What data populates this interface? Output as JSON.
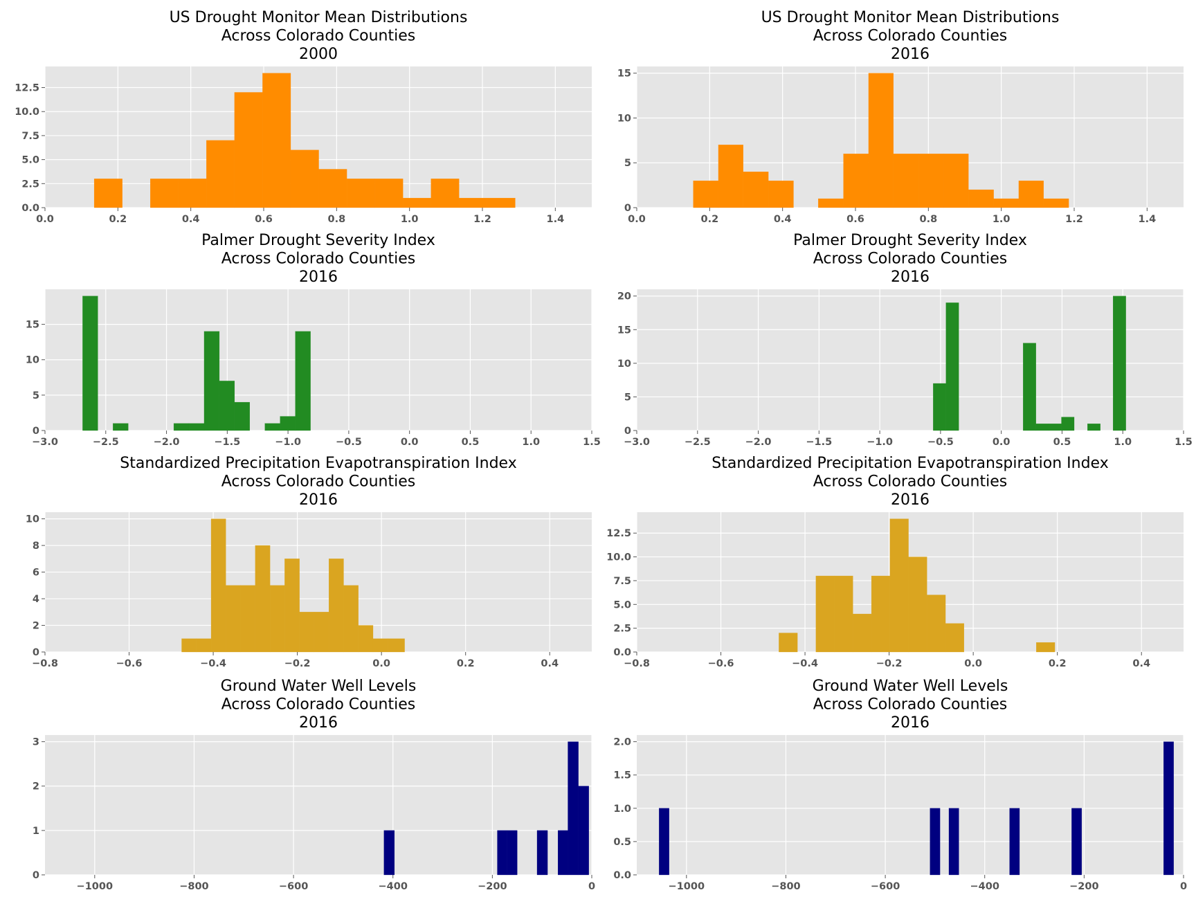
{
  "chart_data": [
    {
      "type": "bar",
      "title": [
        "US Drought Monitor Mean Distributions",
        "Across Colorado Counties",
        "2000"
      ],
      "color": "#ff8c00",
      "xlim": [
        0.0,
        1.5
      ],
      "ylim": [
        0,
        14.7
      ],
      "xticks": [
        0.0,
        0.2,
        0.4,
        0.6,
        0.8,
        1.0,
        1.2,
        1.4
      ],
      "xtick_labels": [
        "0.0",
        "0.2",
        "0.4",
        "0.6",
        "0.8",
        "1.0",
        "1.2",
        "1.4"
      ],
      "yticks": [
        0,
        2.5,
        5.0,
        7.5,
        10.0,
        12.5
      ],
      "ytick_labels": [
        "0.0",
        "2.5",
        "5.0",
        "7.5",
        "10.0",
        "12.5"
      ],
      "bins": [
        {
          "x0": 0.135,
          "x1": 0.212,
          "count": 3
        },
        {
          "x0": 0.289,
          "x1": 0.366,
          "count": 3
        },
        {
          "x0": 0.366,
          "x1": 0.443,
          "count": 3
        },
        {
          "x0": 0.443,
          "x1": 0.52,
          "count": 7
        },
        {
          "x0": 0.52,
          "x1": 0.597,
          "count": 12
        },
        {
          "x0": 0.597,
          "x1": 0.674,
          "count": 14
        },
        {
          "x0": 0.674,
          "x1": 0.751,
          "count": 6
        },
        {
          "x0": 0.751,
          "x1": 0.828,
          "count": 4
        },
        {
          "x0": 0.828,
          "x1": 0.905,
          "count": 3
        },
        {
          "x0": 0.905,
          "x1": 0.982,
          "count": 3
        },
        {
          "x0": 0.982,
          "x1": 1.059,
          "count": 1
        },
        {
          "x0": 1.059,
          "x1": 1.136,
          "count": 3
        },
        {
          "x0": 1.136,
          "x1": 1.213,
          "count": 1
        },
        {
          "x0": 1.213,
          "x1": 1.29,
          "count": 1
        }
      ]
    },
    {
      "type": "bar",
      "title": [
        "US Drought Monitor Mean Distributions",
        "Across Colorado Counties",
        "2016"
      ],
      "color": "#ff8c00",
      "xlim": [
        0.0,
        1.5
      ],
      "ylim": [
        0,
        15.75
      ],
      "xticks": [
        0.0,
        0.2,
        0.4,
        0.6,
        0.8,
        1.0,
        1.2,
        1.4
      ],
      "xtick_labels": [
        "0.0",
        "0.2",
        "0.4",
        "0.6",
        "0.8",
        "1.0",
        "1.2",
        "1.4"
      ],
      "yticks": [
        0,
        5,
        10,
        15
      ],
      "ytick_labels": [
        "0",
        "5",
        "10",
        "15"
      ],
      "bins": [
        {
          "x0": 0.155,
          "x1": 0.224,
          "count": 3
        },
        {
          "x0": 0.224,
          "x1": 0.292,
          "count": 7
        },
        {
          "x0": 0.292,
          "x1": 0.361,
          "count": 4
        },
        {
          "x0": 0.361,
          "x1": 0.43,
          "count": 3
        },
        {
          "x0": 0.498,
          "x1": 0.567,
          "count": 1
        },
        {
          "x0": 0.567,
          "x1": 0.636,
          "count": 6
        },
        {
          "x0": 0.636,
          "x1": 0.704,
          "count": 15
        },
        {
          "x0": 0.704,
          "x1": 0.773,
          "count": 6
        },
        {
          "x0": 0.773,
          "x1": 0.842,
          "count": 6
        },
        {
          "x0": 0.842,
          "x1": 0.91,
          "count": 6
        },
        {
          "x0": 0.91,
          "x1": 0.979,
          "count": 2
        },
        {
          "x0": 0.979,
          "x1": 1.048,
          "count": 1
        },
        {
          "x0": 1.048,
          "x1": 1.116,
          "count": 3
        },
        {
          "x0": 1.116,
          "x1": 1.185,
          "count": 1
        }
      ]
    },
    {
      "type": "bar",
      "title": [
        "Palmer Drought Severity Index",
        "Across Colorado Counties",
        "2016"
      ],
      "color": "#228b22",
      "xlim": [
        -3.0,
        1.5
      ],
      "ylim": [
        0,
        19.95
      ],
      "xticks": [
        -3.0,
        -2.5,
        -2.0,
        -1.5,
        -1.0,
        -0.5,
        0.0,
        0.5,
        1.0,
        1.5
      ],
      "xtick_labels": [
        "−3.0",
        "−2.5",
        "−2.0",
        "−1.5",
        "−1.0",
        "−0.5",
        "0.0",
        "0.5",
        "1.0",
        "1.5"
      ],
      "yticks": [
        0,
        5,
        10,
        15
      ],
      "ytick_labels": [
        "0",
        "5",
        "10",
        "15"
      ],
      "bins": [
        {
          "x0": -2.69,
          "x1": -2.565,
          "count": 19
        },
        {
          "x0": -2.44,
          "x1": -2.315,
          "count": 1
        },
        {
          "x0": -1.94,
          "x1": -1.815,
          "count": 1
        },
        {
          "x0": -1.815,
          "x1": -1.69,
          "count": 1
        },
        {
          "x0": -1.69,
          "x1": -1.565,
          "count": 14
        },
        {
          "x0": -1.565,
          "x1": -1.44,
          "count": 7
        },
        {
          "x0": -1.44,
          "x1": -1.315,
          "count": 4
        },
        {
          "x0": -1.19,
          "x1": -1.065,
          "count": 1
        },
        {
          "x0": -1.065,
          "x1": -0.94,
          "count": 2
        },
        {
          "x0": -0.94,
          "x1": -0.815,
          "count": 14
        }
      ]
    },
    {
      "type": "bar",
      "title": [
        "Palmer Drought Severity Index",
        "Across Colorado Counties",
        "2016"
      ],
      "color": "#228b22",
      "xlim": [
        -3.0,
        1.5
      ],
      "ylim": [
        0,
        21.0
      ],
      "xticks": [
        -3.0,
        -2.5,
        -2.0,
        -1.5,
        -1.0,
        -0.5,
        0.0,
        0.5,
        1.0,
        1.5
      ],
      "xtick_labels": [
        "−3.0",
        "−2.5",
        "−2.0",
        "−1.5",
        "−1.0",
        "−0.5",
        "0.0",
        "0.5",
        "1.0",
        "1.5"
      ],
      "yticks": [
        0,
        5,
        10,
        15,
        20
      ],
      "ytick_labels": [
        "0",
        "5",
        "10",
        "15",
        "20"
      ],
      "bins": [
        {
          "x0": -0.56,
          "x1": -0.455,
          "count": 7
        },
        {
          "x0": -0.455,
          "x1": -0.35,
          "count": 19
        },
        {
          "x0": 0.18,
          "x1": 0.285,
          "count": 13
        },
        {
          "x0": 0.285,
          "x1": 0.39,
          "count": 1
        },
        {
          "x0": 0.39,
          "x1": 0.495,
          "count": 1
        },
        {
          "x0": 0.495,
          "x1": 0.6,
          "count": 2
        },
        {
          "x0": 0.71,
          "x1": 0.815,
          "count": 1
        },
        {
          "x0": 0.92,
          "x1": 1.025,
          "count": 20
        }
      ]
    },
    {
      "type": "bar",
      "title": [
        "Standardized Precipitation Evapotranspiration Index",
        "Across Colorado Counties",
        "2016"
      ],
      "color": "#daa520",
      "xlim": [
        -0.8,
        0.5
      ],
      "ylim": [
        0,
        10.5
      ],
      "xticks": [
        -0.8,
        -0.6,
        -0.4,
        -0.2,
        0.0,
        0.2,
        0.4
      ],
      "xtick_labels": [
        "−0.8",
        "−0.6",
        "−0.4",
        "−0.2",
        "0.0",
        "0.2",
        "0.4"
      ],
      "yticks": [
        0,
        2,
        4,
        6,
        8,
        10
      ],
      "ytick_labels": [
        "0",
        "2",
        "4",
        "6",
        "8",
        "10"
      ],
      "bins": [
        {
          "x0": -0.475,
          "x1": -0.44,
          "count": 1
        },
        {
          "x0": -0.44,
          "x1": -0.405,
          "count": 1
        },
        {
          "x0": -0.405,
          "x1": -0.37,
          "count": 10
        },
        {
          "x0": -0.37,
          "x1": -0.335,
          "count": 5
        },
        {
          "x0": -0.335,
          "x1": -0.3,
          "count": 5
        },
        {
          "x0": -0.3,
          "x1": -0.265,
          "count": 8
        },
        {
          "x0": -0.265,
          "x1": -0.23,
          "count": 5
        },
        {
          "x0": -0.23,
          "x1": -0.195,
          "count": 7
        },
        {
          "x0": -0.195,
          "x1": -0.16,
          "count": 3
        },
        {
          "x0": -0.16,
          "x1": -0.125,
          "count": 3
        },
        {
          "x0": -0.125,
          "x1": -0.09,
          "count": 7
        },
        {
          "x0": -0.09,
          "x1": -0.055,
          "count": 5
        },
        {
          "x0": -0.055,
          "x1": -0.02,
          "count": 2
        },
        {
          "x0": -0.02,
          "x1": 0.015,
          "count": 1
        },
        {
          "x0": 0.015,
          "x1": 0.055,
          "count": 1
        }
      ]
    },
    {
      "type": "bar",
      "title": [
        "Standardized Precipitation Evapotranspiration Index",
        "Across Colorado Counties",
        "2016"
      ],
      "color": "#daa520",
      "xlim": [
        -0.8,
        0.5
      ],
      "ylim": [
        0,
        14.7
      ],
      "xticks": [
        -0.8,
        -0.6,
        -0.4,
        -0.2,
        0.0,
        0.2,
        0.4
      ],
      "xtick_labels": [
        "−0.8",
        "−0.6",
        "−0.4",
        "−0.2",
        "0.0",
        "0.2",
        "0.4"
      ],
      "yticks": [
        0,
        2.5,
        5.0,
        7.5,
        10.0,
        12.5
      ],
      "ytick_labels": [
        "0.0",
        "2.5",
        "5.0",
        "7.5",
        "10.0",
        "12.5"
      ],
      "bins": [
        {
          "x0": -0.462,
          "x1": -0.418,
          "count": 2
        },
        {
          "x0": -0.374,
          "x1": -0.33,
          "count": 8
        },
        {
          "x0": -0.33,
          "x1": -0.286,
          "count": 8
        },
        {
          "x0": -0.286,
          "x1": -0.242,
          "count": 4
        },
        {
          "x0": -0.242,
          "x1": -0.198,
          "count": 8
        },
        {
          "x0": -0.198,
          "x1": -0.154,
          "count": 14
        },
        {
          "x0": -0.154,
          "x1": -0.11,
          "count": 10
        },
        {
          "x0": -0.11,
          "x1": -0.066,
          "count": 6
        },
        {
          "x0": -0.066,
          "x1": -0.022,
          "count": 3
        },
        {
          "x0": 0.15,
          "x1": 0.194,
          "count": 1
        }
      ]
    },
    {
      "type": "bar",
      "title": [
        "Ground Water Well Levels",
        "Across Colorado Counties",
        "2016"
      ],
      "color": "#000080",
      "xlim": [
        -1100,
        0
      ],
      "ylim": [
        0,
        3.15
      ],
      "xticks": [
        -1000,
        -800,
        -600,
        -400,
        -200,
        0
      ],
      "xtick_labels": [
        "−1000",
        "−800",
        "−600",
        "−400",
        "−200",
        "0"
      ],
      "yticks": [
        0,
        1,
        2,
        3
      ],
      "ytick_labels": [
        "0",
        "1",
        "2",
        "3"
      ],
      "bins": [
        {
          "x0": -418,
          "x1": -397,
          "count": 1
        },
        {
          "x0": -190,
          "x1": -170,
          "count": 1
        },
        {
          "x0": -170,
          "x1": -150,
          "count": 1
        },
        {
          "x0": -110,
          "x1": -89,
          "count": 1
        },
        {
          "x0": -68,
          "x1": -48,
          "count": 1
        },
        {
          "x0": -48,
          "x1": -27,
          "count": 3
        },
        {
          "x0": -27,
          "x1": -6,
          "count": 2
        }
      ]
    },
    {
      "type": "bar",
      "title": [
        "Ground Water Well Levels",
        "Across Colorado Counties",
        "2016"
      ],
      "color": "#000080",
      "xlim": [
        -1100,
        0
      ],
      "ylim": [
        0,
        2.1
      ],
      "xticks": [
        -1000,
        -800,
        -600,
        -400,
        -200,
        0
      ],
      "xtick_labels": [
        "−1000",
        "−800",
        "−600",
        "−400",
        "−200",
        "0"
      ],
      "yticks": [
        0,
        0.5,
        1.0,
        1.5,
        2.0
      ],
      "ytick_labels": [
        "0.0",
        "0.5",
        "1.0",
        "1.5",
        "2.0"
      ],
      "bins": [
        {
          "x0": -1055,
          "x1": -1035,
          "count": 1
        },
        {
          "x0": -510,
          "x1": -490,
          "count": 1
        },
        {
          "x0": -472,
          "x1": -452,
          "count": 1
        },
        {
          "x0": -350,
          "x1": -330,
          "count": 1
        },
        {
          "x0": -225,
          "x1": -205,
          "count": 1
        },
        {
          "x0": -40,
          "x1": -20,
          "count": 2
        }
      ]
    }
  ]
}
